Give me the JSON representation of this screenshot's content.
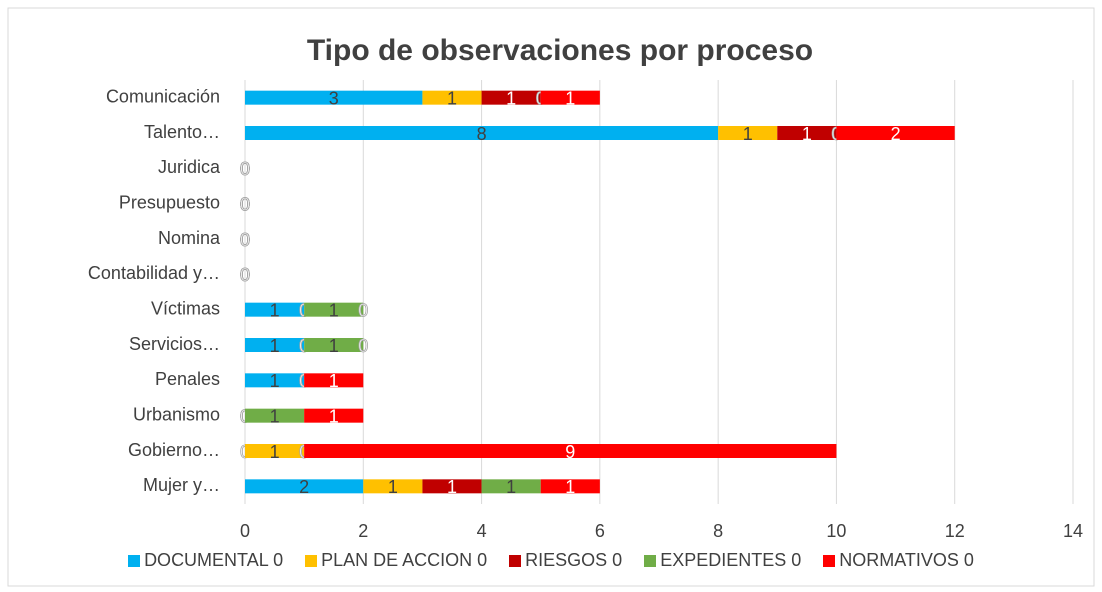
{
  "chart_data": {
    "type": "stacked-barh",
    "title": "Tipo de observaciones por proceso",
    "categories": [
      "Comunicación",
      "Talento…",
      "Juridica",
      "Presupuesto",
      "Nomina",
      "Contabilidad y…",
      "Víctimas",
      "Servicios…",
      "Penales",
      "Urbanismo",
      "Gobierno…",
      "Mujer y…"
    ],
    "series": [
      {
        "name": "DOCUMENTAL 0",
        "color": "#00b0f0",
        "values": [
          3,
          8,
          0,
          0,
          0,
          0,
          1,
          1,
          1,
          0,
          0,
          2
        ]
      },
      {
        "name": "PLAN DE ACCION 0",
        "color": "#ffc000",
        "values": [
          1,
          1,
          0,
          0,
          0,
          0,
          0,
          0,
          0,
          0,
          1,
          1
        ]
      },
      {
        "name": "RIESGOS 0",
        "color": "#c00000",
        "values": [
          1,
          1,
          0,
          0,
          0,
          0,
          0,
          0,
          0,
          0,
          0,
          1
        ]
      },
      {
        "name": "EXPEDIENTES 0",
        "color": "#70ad47",
        "values": [
          0,
          0,
          0,
          0,
          0,
          0,
          1,
          1,
          0,
          1,
          0,
          1
        ]
      },
      {
        "name": "NORMATIVOS 0",
        "color": "#ff0000",
        "values": [
          1,
          2,
          0,
          0,
          0,
          0,
          0,
          0,
          1,
          1,
          9,
          1
        ]
      }
    ],
    "xlim": [
      0,
      14
    ],
    "xticks": [
      0,
      2,
      4,
      6,
      8,
      10,
      12,
      14
    ],
    "grid": true,
    "legend": "bottom"
  }
}
